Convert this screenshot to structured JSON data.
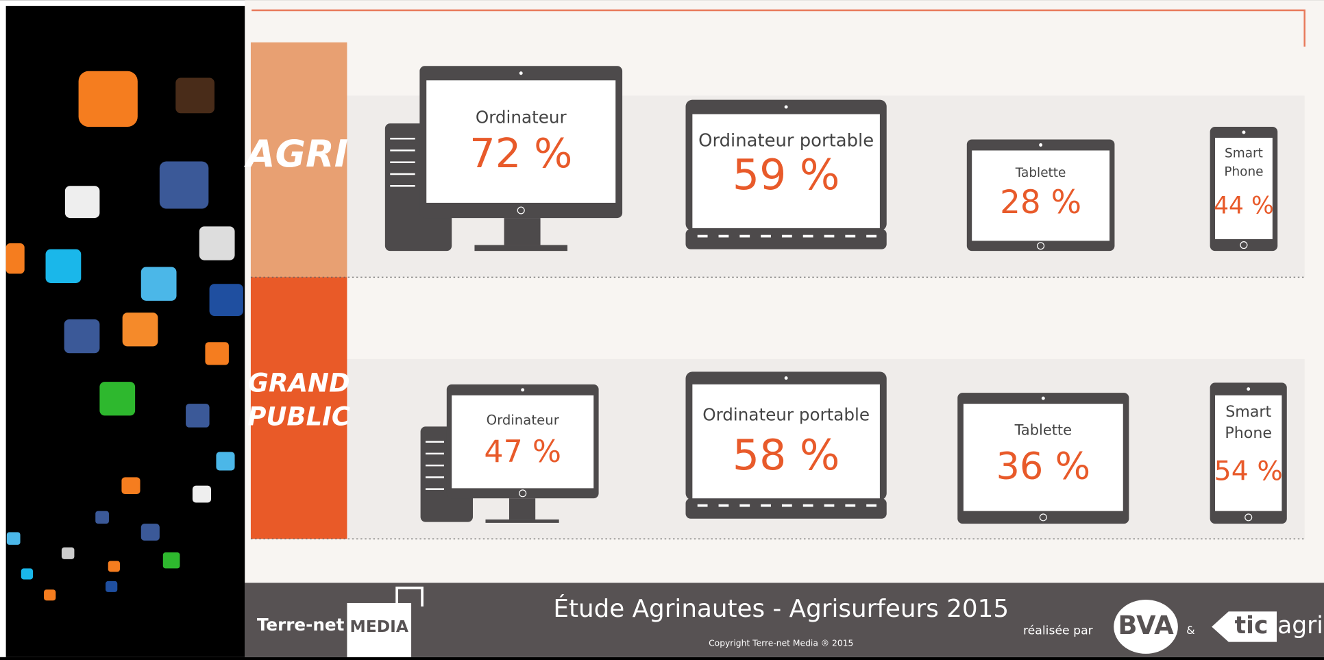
{
  "rows": [
    {
      "label": [
        "AGRI"
      ],
      "devices": [
        {
          "label_lines": [
            "Ordinateur"
          ],
          "value": "72 %"
        },
        {
          "label_lines": [
            "Ordinateur portable"
          ],
          "value": "59 %"
        },
        {
          "label_lines": [
            "Tablette"
          ],
          "value": "28 %"
        },
        {
          "label_lines": [
            "Smart",
            "Phone"
          ],
          "value": "44 %"
        }
      ]
    },
    {
      "label": [
        "GRAND",
        "PUBLIC"
      ],
      "devices": [
        {
          "label_lines": [
            "Ordinateur"
          ],
          "value": "47 %"
        },
        {
          "label_lines": [
            "Ordinateur portable"
          ],
          "value": "58 %"
        },
        {
          "label_lines": [
            "Tablette"
          ],
          "value": "36 %"
        },
        {
          "label_lines": [
            "Smart",
            "Phone"
          ],
          "value": "54 %"
        }
      ]
    }
  ],
  "footer": {
    "brand": "Terre-net",
    "brand_box": "MEDIA",
    "title": "Étude Agrinautes - Agrisurfeurs 2015",
    "copyright": "Copyright Terre-net Media ® 2015",
    "made_by": "réalisée par",
    "partner1": "BVA",
    "and": "&",
    "partner2_box": "tic",
    "partner2": "agri"
  }
}
